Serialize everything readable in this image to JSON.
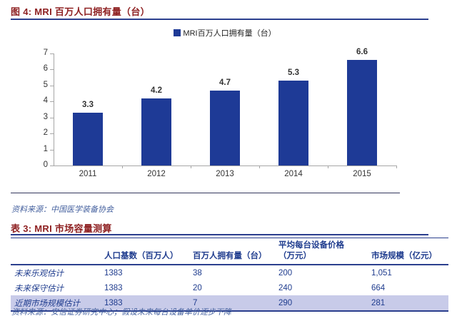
{
  "figure": {
    "title": "图 4: MRI 百万人口拥有量（台）",
    "source": "资料来源：中国医学装备协会"
  },
  "chart_data": {
    "type": "bar",
    "title": "图 4: MRI 百万人口拥有量（台）",
    "legend": "MRI百万人口拥有量（台）",
    "legend_position": "top-center",
    "categories": [
      "2011",
      "2012",
      "2013",
      "2014",
      "2015"
    ],
    "values": [
      3.3,
      4.2,
      4.7,
      5.3,
      6.6
    ],
    "data_labels": [
      "3.3",
      "4.2",
      "4.7",
      "5.3",
      "6.6"
    ],
    "xlabel": "",
    "ylabel": "",
    "ylim": [
      0,
      7
    ],
    "yticks": [
      0,
      1,
      2,
      3,
      4,
      5,
      6,
      7
    ],
    "grid": "off"
  },
  "table_section": {
    "title": "表 3: MRI 市场容量测算",
    "source": "资料来源：安信证券研究中心；假设未来每台设备单价逐步下降"
  },
  "table": {
    "headers": [
      "人口基数（百万人）",
      "百万人拥有量（台）",
      {
        "line1": "平均每台设备价格",
        "line2": "（万元）"
      },
      "市场规模（亿元）"
    ],
    "rows": [
      {
        "label": "未来乐观估计",
        "values": [
          "1383",
          "38",
          "200",
          "1,051"
        ],
        "highlighted": false
      },
      {
        "label": "未来保守估计",
        "values": [
          "1383",
          "20",
          "240",
          "664"
        ],
        "highlighted": false
      },
      {
        "label": "近期市场规模估计",
        "values": [
          "1383",
          "7",
          "290",
          "281"
        ],
        "highlighted": true
      }
    ]
  },
  "colors": {
    "bar_blue": "#1e3a96",
    "navy_text": "#1f3c8e",
    "rule_navy": "#2b3f8e",
    "title_maroon": "#8e2021",
    "highlight_row_bg": "#c8cbe9",
    "source_text": "#44609e",
    "axis_gray": "#a6a6a6",
    "label_dark": "#333333",
    "separator_dark": "#33365c"
  }
}
